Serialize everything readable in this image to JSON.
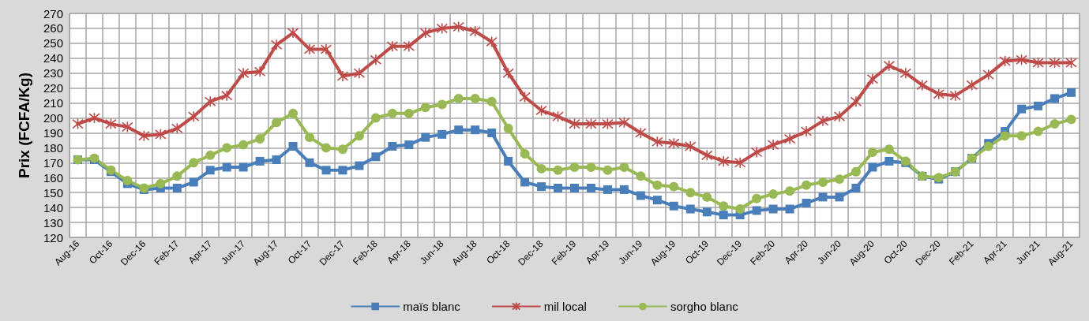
{
  "chart_data": {
    "type": "line",
    "ylabel": "Prix (FCFA/Kg)",
    "categories": [
      "Aug-16",
      null,
      "Oct-16",
      null,
      "Dec-16",
      null,
      "Feb-17",
      null,
      "Apr-17",
      null,
      "Jun-17",
      null,
      "Aug-17",
      null,
      "Oct-17",
      null,
      "Dec-17",
      null,
      "Feb-18",
      null,
      "Apr-18",
      null,
      "Jun-18",
      null,
      "Aug-18",
      null,
      "Oct-18",
      null,
      "Dec-18",
      null,
      "Feb-19",
      null,
      "Apr-19",
      null,
      "Jun-19",
      null,
      "Aug-19",
      null,
      "Oct-19",
      null,
      "Dec-19",
      null,
      "Feb-20",
      null,
      "Apr-20",
      null,
      "Jun-20",
      null,
      "Aug-20",
      null,
      "Oct-20",
      null,
      "Dec-20",
      null,
      "Feb-21",
      null,
      "Apr-21",
      null,
      "Jun-21",
      null,
      "Aug-21"
    ],
    "series": [
      {
        "name": "maïs blanc",
        "color": "#4a7ebb",
        "marker": "square",
        "values": [
          172,
          172,
          164,
          156,
          152,
          153,
          153,
          157,
          165,
          167,
          167,
          171,
          172,
          181,
          170,
          165,
          165,
          168,
          174,
          181,
          182,
          187,
          189,
          192,
          192,
          190,
          171,
          157,
          154,
          153,
          153,
          153,
          152,
          152,
          148,
          145,
          141,
          139,
          137,
          135,
          135,
          138,
          139,
          139,
          143,
          147,
          147,
          153,
          167,
          171,
          170,
          161,
          159,
          164,
          173,
          183,
          191,
          206,
          208,
          213,
          217
        ]
      },
      {
        "name": "mil local",
        "color": "#be4b48",
        "marker": "cross",
        "values": [
          196,
          200,
          196,
          194,
          188,
          189,
          193,
          201,
          211,
          215,
          230,
          231,
          249,
          257,
          246,
          246,
          228,
          230,
          239,
          248,
          248,
          257,
          260,
          261,
          258,
          251,
          230,
          214,
          205,
          201,
          196,
          196,
          196,
          197,
          190,
          184,
          183,
          181,
          175,
          171,
          170,
          177,
          182,
          186,
          191,
          198,
          201,
          211,
          226,
          235,
          230,
          222,
          216,
          215,
          222,
          229,
          238,
          239,
          237,
          237,
          237
        ]
      },
      {
        "name": "sorgho blanc",
        "color": "#98b954",
        "marker": "circle",
        "values": [
          172,
          173,
          165,
          158,
          153,
          156,
          161,
          170,
          175,
          180,
          182,
          186,
          197,
          203,
          187,
          180,
          179,
          188,
          200,
          203,
          203,
          207,
          209,
          213,
          213,
          211,
          193,
          176,
          166,
          165,
          167,
          167,
          165,
          167,
          161,
          155,
          154,
          150,
          147,
          141,
          139,
          146,
          149,
          151,
          155,
          157,
          159,
          164,
          177,
          179,
          171,
          161,
          160,
          164,
          173,
          181,
          188,
          188,
          191,
          196,
          199
        ]
      }
    ],
    "ylim": [
      120,
      270
    ],
    "yticks": [
      120,
      130,
      140,
      150,
      160,
      170,
      180,
      190,
      200,
      210,
      220,
      230,
      240,
      250,
      260,
      270
    ],
    "grid": true,
    "legend": "bottom",
    "line_style": "solid"
  }
}
